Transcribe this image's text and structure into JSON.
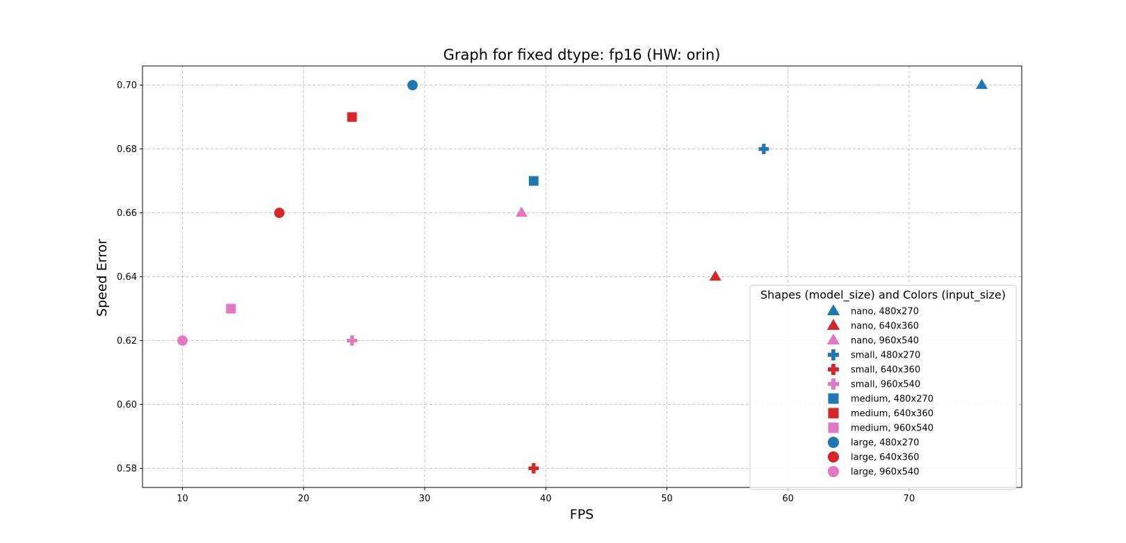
{
  "chart_data": {
    "type": "scatter",
    "title": "Graph for fixed dtype: fp16 (HW: orin)",
    "xlabel": "FPS",
    "ylabel": "Speed Error",
    "xlim": [
      6.7,
      79.3
    ],
    "ylim": [
      0.574,
      0.706
    ],
    "xticks": [
      "10",
      "20",
      "30",
      "40",
      "50",
      "60",
      "70"
    ],
    "yticks": [
      "0.58",
      "0.60",
      "0.62",
      "0.64",
      "0.66",
      "0.68",
      "0.70"
    ],
    "grid": true,
    "legend": {
      "title": "Shapes (model_size) and Colors (input_size)",
      "placement": "lower-right"
    },
    "colors": {
      "480x270": "#1f77b4",
      "640x360": "#d62728",
      "960x540": "#e377c2"
    },
    "series": [
      {
        "name": "nano, 480x270",
        "marker": "triangle",
        "color": "#1f77b4",
        "points": [
          [
            76,
            0.7
          ]
        ]
      },
      {
        "name": "nano, 640x360",
        "marker": "triangle",
        "color": "#d62728",
        "points": [
          [
            54,
            0.64
          ]
        ]
      },
      {
        "name": "nano, 960x540",
        "marker": "triangle",
        "color": "#e377c2",
        "points": [
          [
            38,
            0.66
          ]
        ]
      },
      {
        "name": "small, 480x270",
        "marker": "plus",
        "color": "#1f77b4",
        "points": [
          [
            58,
            0.68
          ]
        ]
      },
      {
        "name": "small, 640x360",
        "marker": "plus",
        "color": "#d62728",
        "points": [
          [
            39,
            0.58
          ]
        ]
      },
      {
        "name": "small, 960x540",
        "marker": "plus",
        "color": "#e377c2",
        "points": [
          [
            24,
            0.62
          ]
        ]
      },
      {
        "name": "medium, 480x270",
        "marker": "square",
        "color": "#1f77b4",
        "points": [
          [
            39,
            0.67
          ]
        ]
      },
      {
        "name": "medium, 640x360",
        "marker": "square",
        "color": "#d62728",
        "points": [
          [
            24,
            0.69
          ]
        ]
      },
      {
        "name": "medium, 960x540",
        "marker": "square",
        "color": "#e377c2",
        "points": [
          [
            14,
            0.63
          ]
        ]
      },
      {
        "name": "large, 480x270",
        "marker": "circle",
        "color": "#1f77b4",
        "points": [
          [
            29,
            0.7
          ]
        ]
      },
      {
        "name": "large, 640x360",
        "marker": "circle",
        "color": "#d62728",
        "points": [
          [
            18,
            0.66
          ]
        ]
      },
      {
        "name": "large, 960x540",
        "marker": "circle",
        "color": "#e377c2",
        "points": [
          [
            10,
            0.62
          ]
        ]
      }
    ]
  }
}
